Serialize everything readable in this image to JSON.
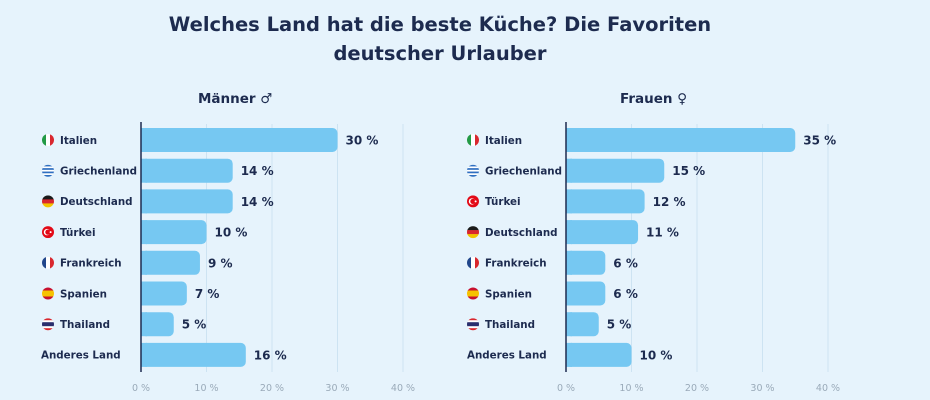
{
  "title_line1": "Welches Land hat die beste Küche? Die Favoriten",
  "title_line2": "deutscher Urlauber",
  "colors": {
    "bar": "#76c8f2",
    "text": "#1d2b4f",
    "grid": "#cde3f2",
    "tick": "#9aaab9",
    "axis": "#1d2b4f",
    "background": "#e6f3fc"
  },
  "chart_data": [
    {
      "type": "bar",
      "orientation": "horizontal",
      "title": "Männer ♂",
      "categories": [
        "Italien",
        "Griechenland",
        "Deutschland",
        "Türkei",
        "Frankreich",
        "Spanien",
        "Thailand",
        "Anderes Land"
      ],
      "flags": [
        "it",
        "gr",
        "de",
        "tr",
        "fr",
        "es",
        "th",
        ""
      ],
      "values": [
        30,
        14,
        14,
        10,
        9,
        7,
        5,
        16
      ],
      "value_labels": [
        "30 %",
        "14 %",
        "14 %",
        "10 %",
        "9 %",
        "7 %",
        "5 %",
        "16 %"
      ],
      "xlim": [
        0,
        40
      ],
      "xticks": [
        0,
        10,
        20,
        30,
        40
      ],
      "xtick_labels": [
        "0 %",
        "10 %",
        "20 %",
        "30 %",
        "40 %"
      ],
      "grid": true
    },
    {
      "type": "bar",
      "orientation": "horizontal",
      "title": "Frauen ♀",
      "categories": [
        "Italien",
        "Griechenland",
        "Türkei",
        "Deutschland",
        "Frankreich",
        "Spanien",
        "Thailand",
        "Anderes Land"
      ],
      "flags": [
        "it",
        "gr",
        "tr",
        "de",
        "fr",
        "es",
        "th",
        ""
      ],
      "values": [
        35,
        15,
        12,
        11,
        6,
        6,
        5,
        10
      ],
      "value_labels": [
        "35 %",
        "15 %",
        "12 %",
        "11 %",
        "6 %",
        "6 %",
        "5 %",
        "10 %"
      ],
      "xlim": [
        0,
        40
      ],
      "xticks": [
        0,
        10,
        20,
        30,
        40
      ],
      "xtick_labels": [
        "0 %",
        "10 %",
        "20 %",
        "30 %",
        "40 %"
      ],
      "grid": true
    }
  ]
}
